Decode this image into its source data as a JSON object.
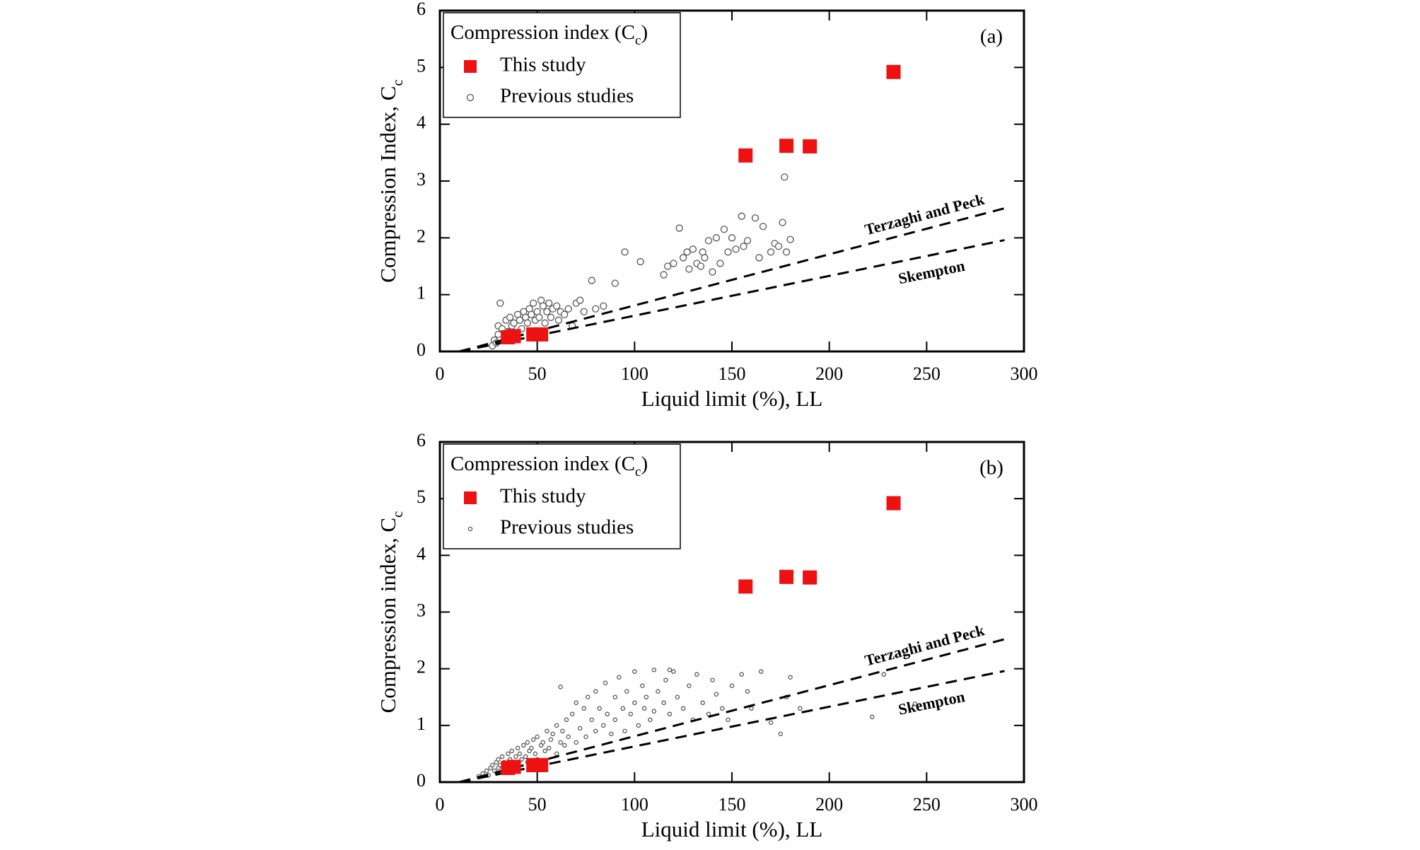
{
  "chart_data": [
    {
      "type": "scatter",
      "panel_label": "(a)",
      "xlabel": "Liquid limit (%), LL",
      "ylabel": [
        "Compression Index, C",
        "c"
      ],
      "legend_title": [
        "Compression index (C",
        "c",
        ")"
      ],
      "xlim": [
        0,
        300
      ],
      "ylim": [
        0,
        6
      ],
      "xticks": [
        0,
        50,
        100,
        150,
        200,
        250,
        300
      ],
      "yticks": [
        0,
        1,
        2,
        3,
        4,
        5,
        6
      ],
      "series": [
        {
          "name": "This study",
          "color": "#ee1111",
          "marker": "square",
          "x": [
            35,
            38,
            48,
            52,
            157,
            178,
            190,
            233
          ],
          "values": [
            0.25,
            0.27,
            0.3,
            0.3,
            3.45,
            3.62,
            3.61,
            4.92
          ]
        },
        {
          "name": "Previous studies",
          "color": "#555555",
          "marker": "circle",
          "x": [
            27,
            28,
            29,
            30,
            30,
            31,
            32,
            33,
            34,
            35,
            36,
            37,
            38,
            39,
            40,
            41,
            42,
            43,
            44,
            45,
            46,
            47,
            48,
            49,
            50,
            51,
            52,
            53,
            54,
            55,
            56,
            57,
            58,
            60,
            61,
            62,
            64,
            66,
            68,
            70,
            72,
            74,
            78,
            80,
            84,
            90,
            95,
            103,
            115,
            117,
            120,
            123,
            125,
            127,
            128,
            130,
            132,
            134,
            135,
            136,
            138,
            140,
            142,
            144,
            146,
            148,
            150,
            152,
            155,
            156,
            158,
            162,
            164,
            166,
            170,
            172,
            174,
            176,
            177,
            178,
            180
          ],
          "values": [
            0.1,
            0.2,
            0.15,
            0.3,
            0.45,
            0.85,
            0.4,
            0.2,
            0.55,
            0.35,
            0.6,
            0.45,
            0.5,
            0.3,
            0.65,
            0.55,
            0.4,
            0.7,
            0.6,
            0.5,
            0.75,
            0.65,
            0.85,
            0.55,
            0.7,
            0.6,
            0.9,
            0.8,
            0.5,
            0.7,
            0.85,
            0.6,
            0.75,
            0.8,
            0.55,
            0.7,
            0.65,
            0.75,
            0.45,
            0.85,
            0.9,
            0.7,
            1.25,
            0.75,
            0.8,
            1.2,
            1.75,
            1.58,
            1.35,
            1.5,
            1.55,
            2.17,
            1.65,
            1.75,
            1.45,
            1.8,
            1.55,
            1.5,
            1.75,
            1.65,
            1.95,
            1.4,
            2.0,
            1.55,
            2.15,
            1.75,
            2.0,
            1.8,
            2.38,
            1.85,
            1.95,
            2.35,
            1.65,
            2.2,
            1.75,
            1.9,
            1.85,
            2.27,
            3.07,
            1.75,
            1.97
          ]
        },
        {
          "name": "Terzaghi and Peck",
          "color": "#000000",
          "marker": "dashed",
          "x": [
            10,
            290
          ],
          "values": [
            0,
            2.52
          ]
        },
        {
          "name": "Skempton",
          "color": "#000000",
          "marker": "dashed",
          "x": [
            10,
            290
          ],
          "values": [
            0,
            1.96
          ]
        }
      ]
    },
    {
      "type": "scatter",
      "panel_label": "(b)",
      "xlabel": "Liquid limit (%), LL",
      "ylabel": [
        "Compression index, C",
        "c"
      ],
      "legend_title": [
        "Compression index (C",
        "c",
        ")"
      ],
      "xlim": [
        0,
        300
      ],
      "ylim": [
        0,
        6
      ],
      "xticks": [
        0,
        50,
        100,
        150,
        200,
        250,
        300
      ],
      "yticks": [
        0,
        1,
        2,
        3,
        4,
        5,
        6
      ],
      "series": [
        {
          "name": "This study",
          "color": "#ee1111",
          "marker": "square",
          "x": [
            35,
            38,
            48,
            52,
            157,
            178,
            190,
            233
          ],
          "values": [
            0.25,
            0.27,
            0.3,
            0.3,
            3.45,
            3.62,
            3.61,
            4.92
          ]
        },
        {
          "name": "Previous studies",
          "color": "#555555",
          "marker": "circle",
          "x": [
            20,
            22,
            24,
            25,
            26,
            27,
            28,
            29,
            30,
            30,
            31,
            32,
            33,
            34,
            35,
            35,
            36,
            37,
            38,
            39,
            40,
            40,
            41,
            42,
            43,
            44,
            45,
            45,
            46,
            47,
            48,
            49,
            50,
            50,
            52,
            53,
            54,
            55,
            56,
            57,
            58,
            60,
            60,
            62,
            63,
            64,
            65,
            66,
            68,
            70,
            70,
            72,
            74,
            75,
            76,
            78,
            80,
            80,
            82,
            84,
            85,
            86,
            88,
            90,
            90,
            92,
            94,
            95,
            96,
            98,
            100,
            100,
            102,
            104,
            105,
            106,
            108,
            110,
            110,
            112,
            115,
            116,
            118,
            120,
            122,
            125,
            128,
            130,
            132,
            135,
            138,
            140,
            142,
            145,
            148,
            150,
            155,
            158,
            160,
            165,
            170,
            175,
            178,
            180,
            185,
            228,
            222,
            244,
            62,
            118
          ],
          "values": [
            0.1,
            0.15,
            0.2,
            0.12,
            0.25,
            0.3,
            0.2,
            0.35,
            0.25,
            0.4,
            0.3,
            0.45,
            0.35,
            0.25,
            0.5,
            0.3,
            0.4,
            0.55,
            0.35,
            0.45,
            0.6,
            0.3,
            0.5,
            0.4,
            0.65,
            0.45,
            0.7,
            0.35,
            0.55,
            0.6,
            0.75,
            0.5,
            0.8,
            0.4,
            0.65,
            0.7,
            0.55,
            0.9,
            0.6,
            0.75,
            0.85,
            0.5,
            1.0,
            0.7,
            0.9,
            0.65,
            1.1,
            0.8,
            1.2,
            0.7,
            1.4,
            0.95,
            1.3,
            0.8,
            1.5,
            1.1,
            1.6,
            0.9,
            1.3,
            1.0,
            1.75,
            1.2,
            0.85,
            1.5,
            1.1,
            1.85,
            1.3,
            0.9,
            1.6,
            1.2,
            1.95,
            1.4,
            1.0,
            1.7,
            1.3,
            1.5,
            1.1,
            1.98,
            1.25,
            1.6,
            1.4,
            1.8,
            1.2,
            1.95,
            1.5,
            1.3,
            1.7,
            1.1,
            1.9,
            1.4,
            1.2,
            1.8,
            1.55,
            1.3,
            1.1,
            1.7,
            1.9,
            1.6,
            1.3,
            1.95,
            1.05,
            0.85,
            1.5,
            1.85,
            1.3,
            1.9,
            1.15,
            1.38,
            1.68,
            1.98
          ]
        },
        {
          "name": "Terzaghi and Peck",
          "color": "#000000",
          "marker": "dashed",
          "x": [
            10,
            290
          ],
          "values": [
            0,
            2.52
          ]
        },
        {
          "name": "Skempton",
          "color": "#000000",
          "marker": "dashed",
          "x": [
            10,
            290
          ],
          "values": [
            0,
            1.96
          ]
        }
      ]
    }
  ]
}
